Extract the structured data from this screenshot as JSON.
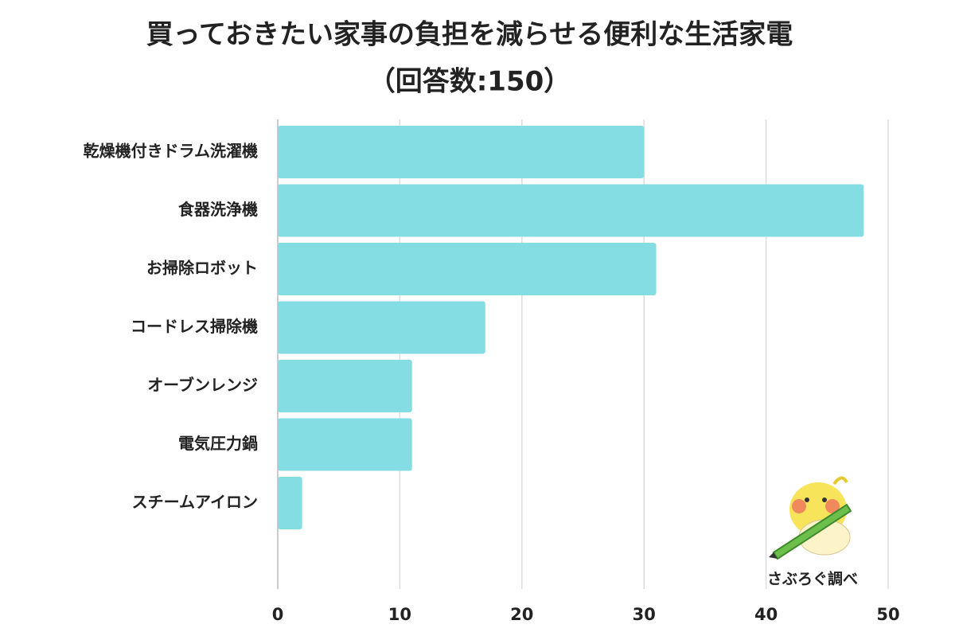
{
  "chart_data": {
    "type": "bar",
    "orientation": "horizontal",
    "title": "買っておきたい家事の負担を減らせる便利な生活家電",
    "subtitle": "（回答数:150）",
    "categories": [
      "乾燥機付きドラム洗濯機",
      "食器洗浄機",
      "お掃除ロボット",
      "コードレス掃除機",
      "オーブンレンジ",
      "電気圧力鍋",
      "スチームアイロン"
    ],
    "values": [
      30,
      48,
      31,
      17,
      11,
      11,
      2
    ],
    "color": "#84dde3",
    "xlim": [
      0,
      50
    ],
    "xticks": [
      0,
      10,
      20,
      30,
      40,
      50
    ],
    "grid": true,
    "annotation": "さぶろぐ調べ"
  }
}
